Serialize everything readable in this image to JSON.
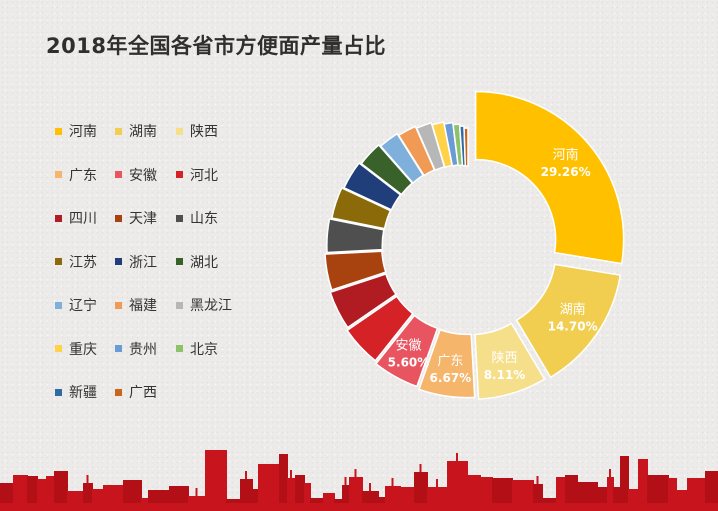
{
  "title": "2018年全国各省市方便面产量占比",
  "chart_data": {
    "type": "pie",
    "title": "2018年全国各省市方便面产量占比",
    "legend_position": "left",
    "slices": [
      {
        "name": "河南",
        "value": 29.26,
        "label": "29.26%",
        "color": "#FFC000"
      },
      {
        "name": "湖南",
        "value": 14.7,
        "label": "14.70%",
        "color": "#F2CE50"
      },
      {
        "name": "陕西",
        "value": 8.11,
        "label": "8.11%",
        "color": "#F5DF8B"
      },
      {
        "name": "广东",
        "value": 6.67,
        "label": "6.67%",
        "color": "#F5B56B"
      },
      {
        "name": "安徽",
        "value": 5.6,
        "label": "5.60%",
        "color": "#E85560"
      },
      {
        "name": "河北",
        "value": 5.0,
        "color": "#D42227"
      },
      {
        "name": "四川",
        "value": 4.8,
        "color": "#B01C22"
      },
      {
        "name": "天津",
        "value": 4.5,
        "color": "#A8420E"
      },
      {
        "name": "山东",
        "value": 4.2,
        "color": "#4F4F4F"
      },
      {
        "name": "江苏",
        "value": 4.0,
        "color": "#8B6A0A"
      },
      {
        "name": "浙江",
        "value": 3.7,
        "color": "#1F3E7A"
      },
      {
        "name": "湖北",
        "value": 3.3,
        "color": "#38622A"
      },
      {
        "name": "辽宁",
        "value": 2.7,
        "color": "#7FB0DC"
      },
      {
        "name": "福建",
        "value": 2.5,
        "color": "#F09A55"
      },
      {
        "name": "黑龙江",
        "value": 2.1,
        "color": "#B7B7B7"
      },
      {
        "name": "重庆",
        "value": 1.6,
        "color": "#FFD24A"
      },
      {
        "name": "贵州",
        "value": 1.2,
        "color": "#6A9BD4"
      },
      {
        "name": "北京",
        "value": 0.9,
        "color": "#8DC26A"
      },
      {
        "name": "新疆",
        "value": 0.6,
        "color": "#2F6CA5"
      },
      {
        "name": "广西",
        "value": 0.56,
        "color": "#C9661C"
      }
    ]
  }
}
